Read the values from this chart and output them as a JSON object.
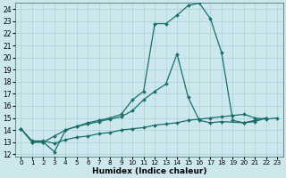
{
  "xlabel": "Humidex (Indice chaleur)",
  "bg_color": "#cce8ed",
  "grid_color": "#b0d4da",
  "line_color": "#1a6e6a",
  "xlim": [
    -0.5,
    23.5
  ],
  "ylim": [
    11.8,
    24.5
  ],
  "xticks": [
    0,
    1,
    2,
    3,
    4,
    5,
    6,
    7,
    8,
    9,
    10,
    11,
    12,
    13,
    14,
    15,
    16,
    17,
    18,
    19,
    20,
    21,
    22,
    23
  ],
  "yticks": [
    12,
    13,
    14,
    15,
    16,
    17,
    18,
    19,
    20,
    21,
    22,
    23,
    24
  ],
  "series": [
    {
      "x": [
        0,
        1,
        2,
        3,
        4,
        5,
        6,
        7,
        8,
        9,
        10,
        11,
        12,
        13,
        14,
        15,
        16,
        17,
        18,
        19,
        20,
        21,
        22
      ],
      "y": [
        14.1,
        13.0,
        13.0,
        12.2,
        14.0,
        14.3,
        14.6,
        14.8,
        15.0,
        15.3,
        16.5,
        17.2,
        22.8,
        22.8,
        23.5,
        24.3,
        24.5,
        23.2,
        20.4,
        14.8,
        14.6,
        14.7,
        15.0
      ]
    },
    {
      "x": [
        0,
        1,
        2,
        3,
        4,
        5,
        6,
        7,
        8,
        9,
        10,
        11,
        12,
        13,
        14,
        15,
        16,
        17,
        18,
        20,
        21,
        22
      ],
      "y": [
        14.1,
        13.0,
        13.0,
        13.5,
        14.0,
        14.3,
        14.5,
        14.7,
        14.9,
        15.1,
        15.6,
        16.5,
        17.2,
        17.8,
        20.3,
        16.7,
        14.8,
        14.6,
        14.7,
        14.6,
        14.8,
        15.0
      ]
    },
    {
      "x": [
        0,
        1,
        2,
        3,
        4,
        5,
        6,
        7,
        8,
        9,
        10,
        11,
        12,
        13,
        14,
        15,
        16,
        17,
        18,
        19,
        20,
        21,
        22,
        23
      ],
      "y": [
        14.1,
        13.1,
        13.1,
        12.9,
        13.2,
        13.4,
        13.5,
        13.7,
        13.8,
        14.0,
        14.1,
        14.2,
        14.4,
        14.5,
        14.6,
        14.8,
        14.9,
        15.0,
        15.1,
        15.2,
        15.3,
        15.0,
        14.9,
        15.0
      ]
    }
  ]
}
